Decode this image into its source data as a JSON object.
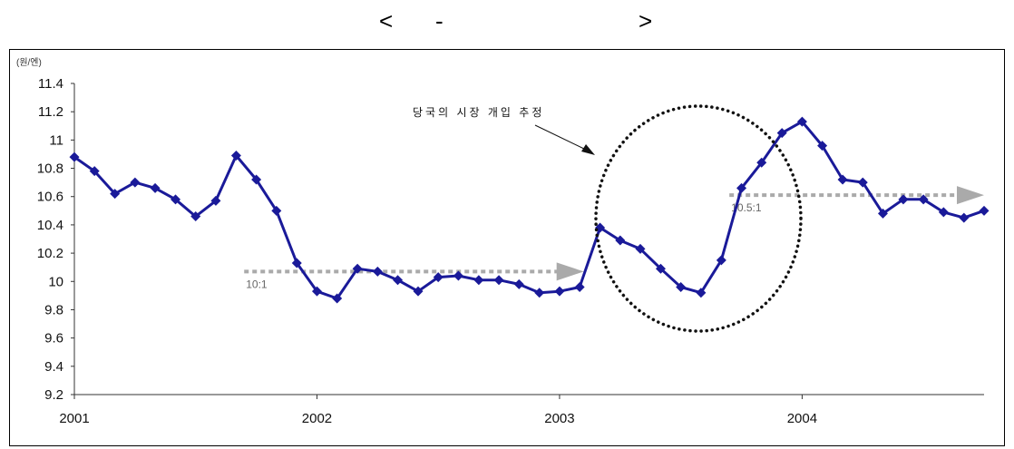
{
  "header": {
    "open_bracket": "<",
    "dash": "-",
    "close_bracket": ">"
  },
  "chart_data": {
    "type": "line",
    "title": "",
    "ylabel": "(원/엔)",
    "xlabel": "",
    "ylim": [
      9.2,
      11.4
    ],
    "yticks": [
      {
        "value": 9.2,
        "label": "9.2"
      },
      {
        "value": 9.4,
        "label": "9.4"
      },
      {
        "value": 9.6,
        "label": "9.6"
      },
      {
        "value": 9.8,
        "label": "9.8"
      },
      {
        "value": 10.0,
        "label": "10"
      },
      {
        "value": 10.2,
        "label": "10.2"
      },
      {
        "value": 10.4,
        "label": "10.4"
      },
      {
        "value": 10.6,
        "label": "10.6"
      },
      {
        "value": 10.8,
        "label": "10.8"
      },
      {
        "value": 11.0,
        "label": "11"
      },
      {
        "value": 11.2,
        "label": "11.2"
      },
      {
        "value": 11.4,
        "label": "11.4"
      }
    ],
    "xlim": [
      2001.0,
      2004.75
    ],
    "xticks": [
      {
        "value": 2001,
        "label": "2001"
      },
      {
        "value": 2002,
        "label": "2002"
      },
      {
        "value": 2003,
        "label": "2003"
      },
      {
        "value": 2004,
        "label": "2004"
      }
    ],
    "series": [
      {
        "color": "#1a1a99",
        "x": [
          2001.0,
          2001.083,
          2001.167,
          2001.25,
          2001.333,
          2001.417,
          2001.5,
          2001.583,
          2001.667,
          2001.75,
          2001.833,
          2001.917,
          2002.0,
          2002.083,
          2002.167,
          2002.25,
          2002.333,
          2002.417,
          2002.5,
          2002.583,
          2002.667,
          2002.75,
          2002.833,
          2002.917,
          2003.0,
          2003.083,
          2003.167,
          2003.25,
          2003.333,
          2003.417,
          2003.5,
          2003.583,
          2003.667,
          2003.75,
          2003.833,
          2003.917,
          2004.0,
          2004.083,
          2004.167,
          2004.25,
          2004.333,
          2004.417,
          2004.5,
          2004.583,
          2004.667,
          2004.75
        ],
        "values": [
          10.88,
          10.78,
          10.62,
          10.7,
          10.66,
          10.58,
          10.46,
          10.57,
          10.89,
          10.72,
          10.5,
          10.13,
          9.93,
          9.88,
          10.09,
          10.07,
          10.01,
          9.93,
          10.03,
          10.04,
          10.01,
          10.01,
          9.98,
          9.92,
          9.93,
          9.96,
          10.38,
          10.29,
          10.23,
          10.09,
          9.96,
          9.92,
          10.15,
          10.66,
          10.84,
          11.05,
          11.13,
          10.96,
          10.72,
          10.7,
          10.48,
          10.58,
          10.58,
          10.49,
          10.45,
          10.5
        ]
      }
    ],
    "reference_lines": [
      {
        "label": "10:1",
        "value": 10.07,
        "x_start": 2001.7,
        "x_end": 2003.1
      },
      {
        "label": "10.5:1",
        "value": 10.61,
        "x_start": 2003.7,
        "x_end": 2004.75
      }
    ],
    "annotations": [
      {
        "text": "당국의 시장 개입 추정"
      }
    ],
    "grid": false,
    "legend": "none"
  }
}
